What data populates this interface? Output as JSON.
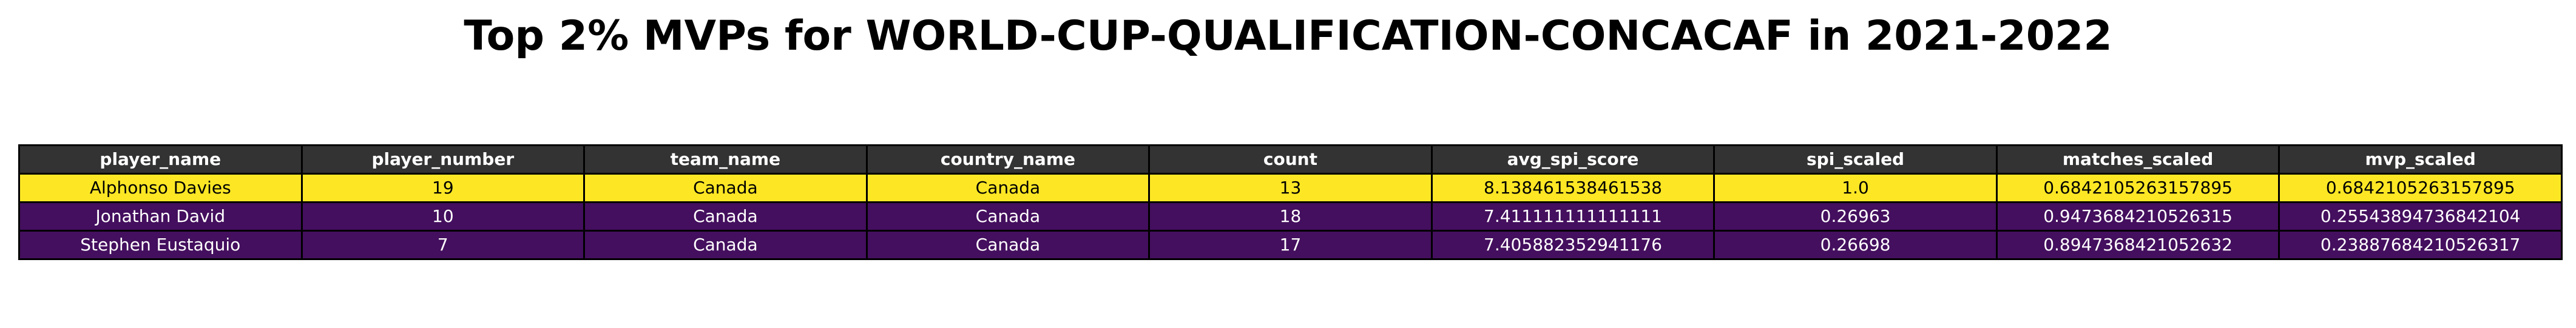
{
  "figure": {
    "title": "Top 2% MVPs for WORLD-CUP-QUALIFICATION-CONCACAF in 2021-2022"
  },
  "colors": {
    "header_bg": "#333333",
    "header_text": "#ffffff",
    "row_highlight_bg": "#fde725",
    "row_highlight_text": "#000000",
    "row_default_bg": "#440f5e",
    "row_default_text": "#ffffff",
    "border": "#000000"
  },
  "chart_data": {
    "type": "table",
    "title": "Top 2% MVPs for WORLD-CUP-QUALIFICATION-CONCACAF in 2021-2022",
    "columns": [
      "player_name",
      "player_number",
      "team_name",
      "country_name",
      "count",
      "avg_spi_score",
      "spi_scaled",
      "matches_scaled",
      "mvp_scaled"
    ],
    "rows": [
      [
        "Alphonso Davies",
        "19",
        "Canada",
        "Canada",
        "13",
        "8.138461538461538",
        "1.0",
        "0.6842105263157895",
        "0.6842105263157895"
      ],
      [
        "Jonathan David",
        "10",
        "Canada",
        "Canada",
        "18",
        "7.411111111111111",
        "0.26963",
        "0.9473684210526315",
        "0.25543894736842104"
      ],
      [
        "Stephen Eustaquio",
        "7",
        "Canada",
        "Canada",
        "17",
        "7.405882352941176",
        "0.26698",
        "0.8947368421052632",
        "0.23887684210526317"
      ]
    ],
    "row_colors": [
      "#fde725",
      "#440f5e",
      "#440f5e"
    ]
  }
}
